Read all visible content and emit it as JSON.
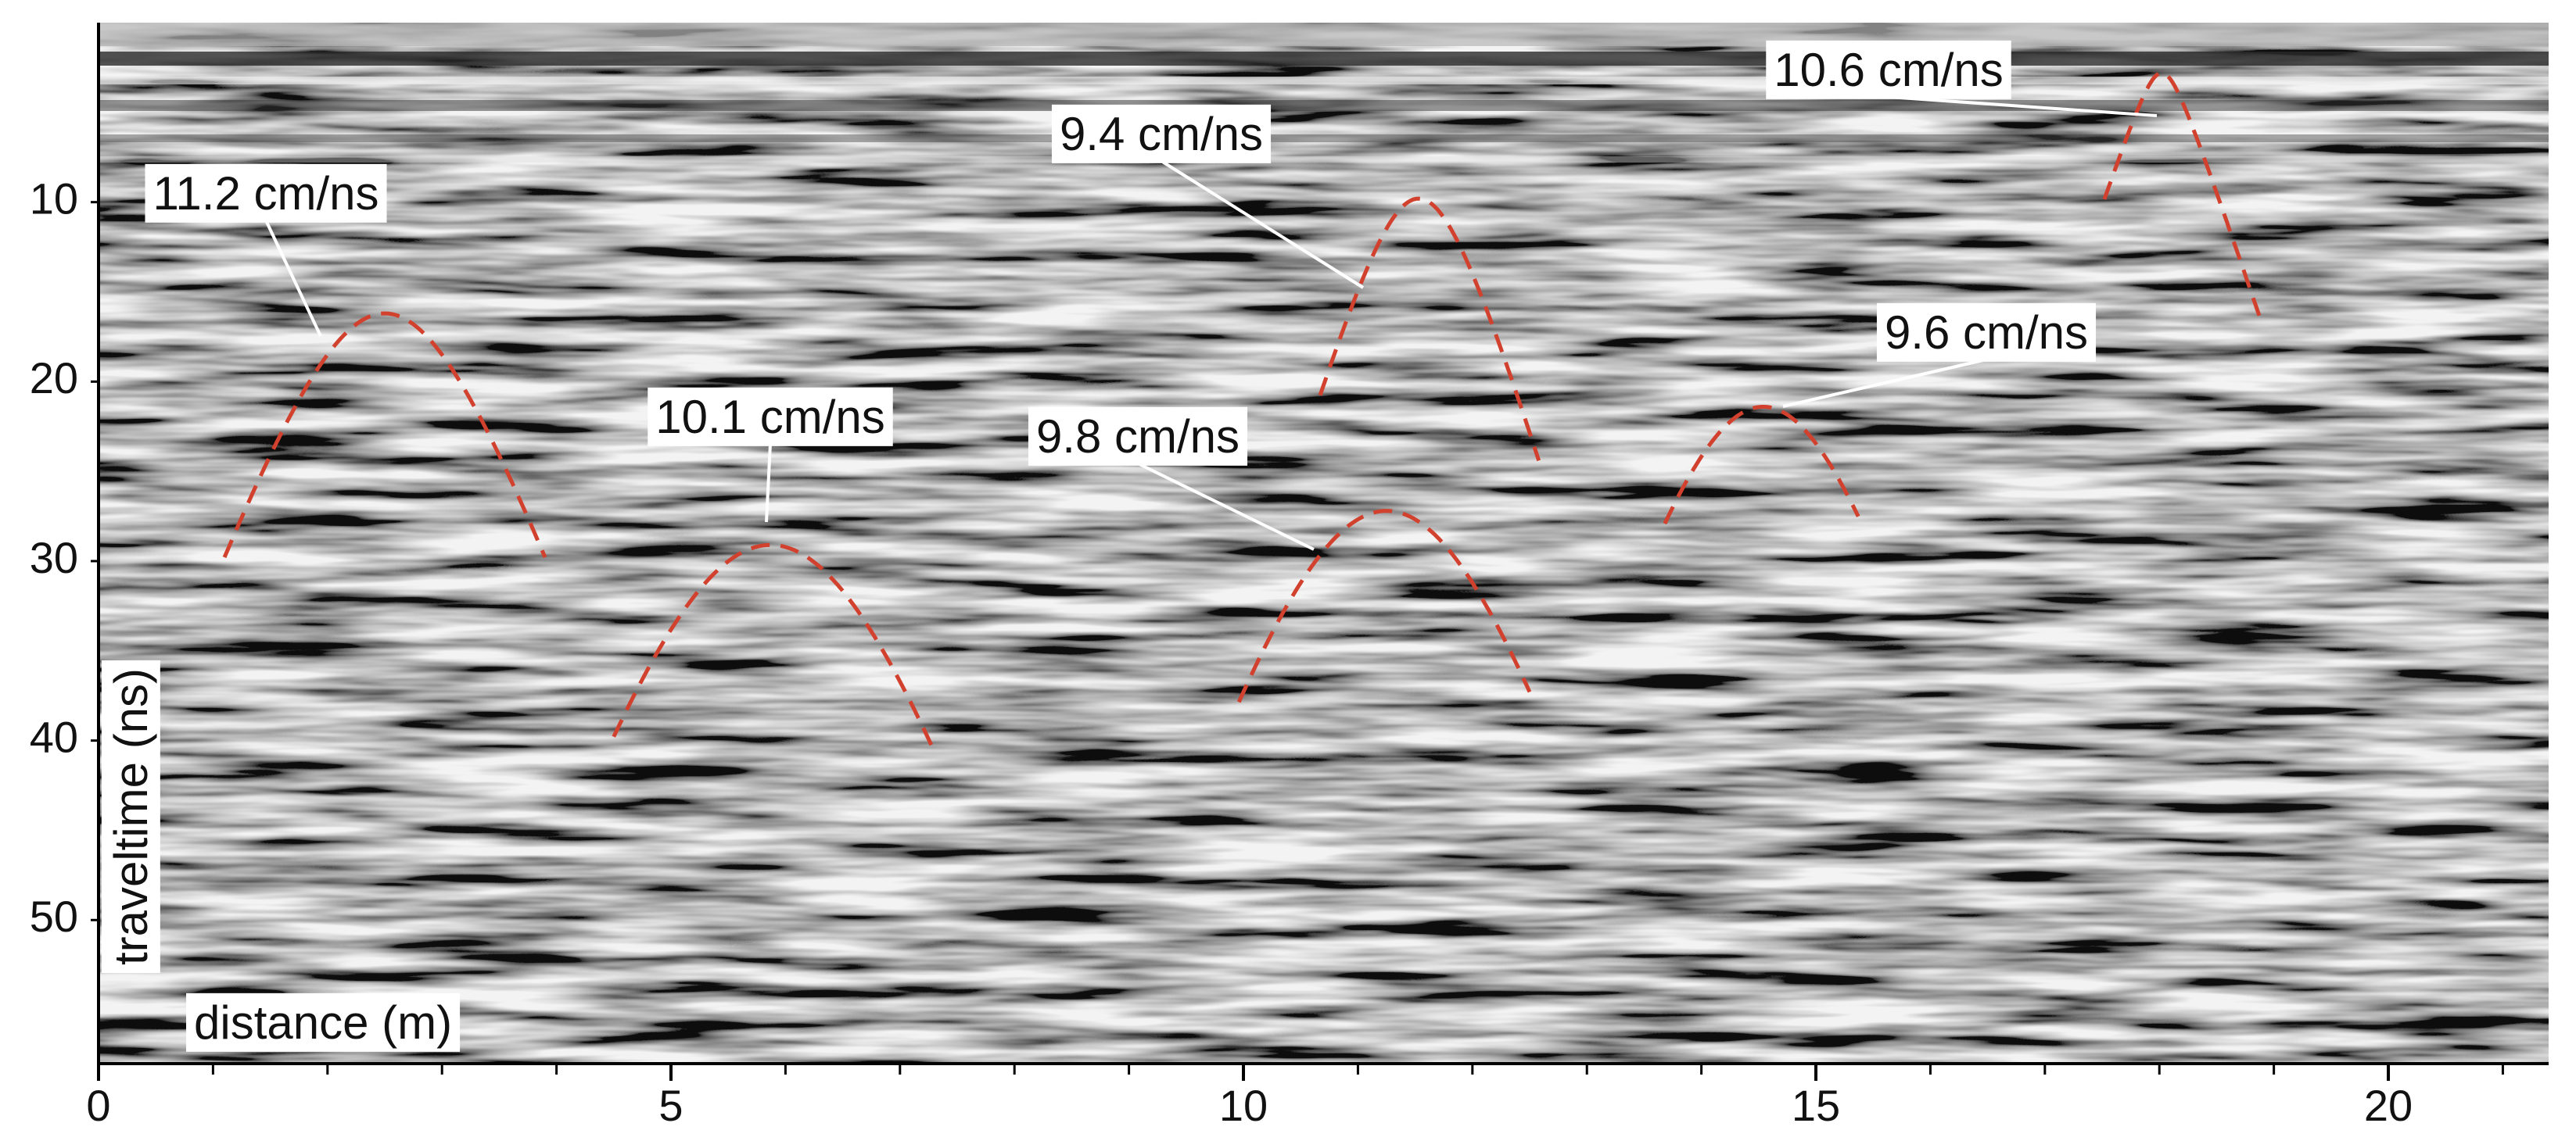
{
  "chart_data": {
    "type": "radargram",
    "x_label": "distance (m)",
    "y_label": "traveltime (ns)",
    "xlim": [
      0,
      21.4
    ],
    "xticks": [
      0,
      5,
      10,
      15,
      20
    ],
    "xminor_ticks": [
      1,
      2,
      3,
      4,
      6,
      7,
      8,
      9,
      11,
      12,
      13,
      14,
      16,
      17,
      18,
      19,
      21
    ],
    "ylim": [
      0,
      58
    ],
    "y_inverted": true,
    "yticks": [
      10,
      20,
      30,
      40,
      50
    ],
    "curve_color": "#d2402e",
    "hyperbolas": [
      {
        "label": "11.2 cm/ns",
        "velocity": 11.2,
        "x0": 2.5,
        "t0": 16.2,
        "x_range": [
          1.1,
          3.9
        ]
      },
      {
        "label": "10.1 cm/ns",
        "velocity": 10.1,
        "x0": 5.87,
        "t0": 29.1,
        "x_range": [
          4.5,
          7.3
        ]
      },
      {
        "label": "9.4 cm/ns",
        "velocity": 9.4,
        "x0": 11.53,
        "t0": 9.8,
        "x_range": [
          10.67,
          12.58
        ]
      },
      {
        "label": "9.8 cm/ns",
        "velocity": 9.8,
        "x0": 11.25,
        "t0": 27.2,
        "x_range": [
          9.96,
          12.5
        ]
      },
      {
        "label": "9.6 cm/ns",
        "velocity": 9.6,
        "x0": 14.54,
        "t0": 21.4,
        "x_range": [
          13.68,
          15.37
        ]
      },
      {
        "label": "10.6 cm/ns",
        "velocity": 10.6,
        "x0": 18.02,
        "t0": 2.8,
        "x_range": [
          17.52,
          18.88
        ]
      }
    ]
  }
}
